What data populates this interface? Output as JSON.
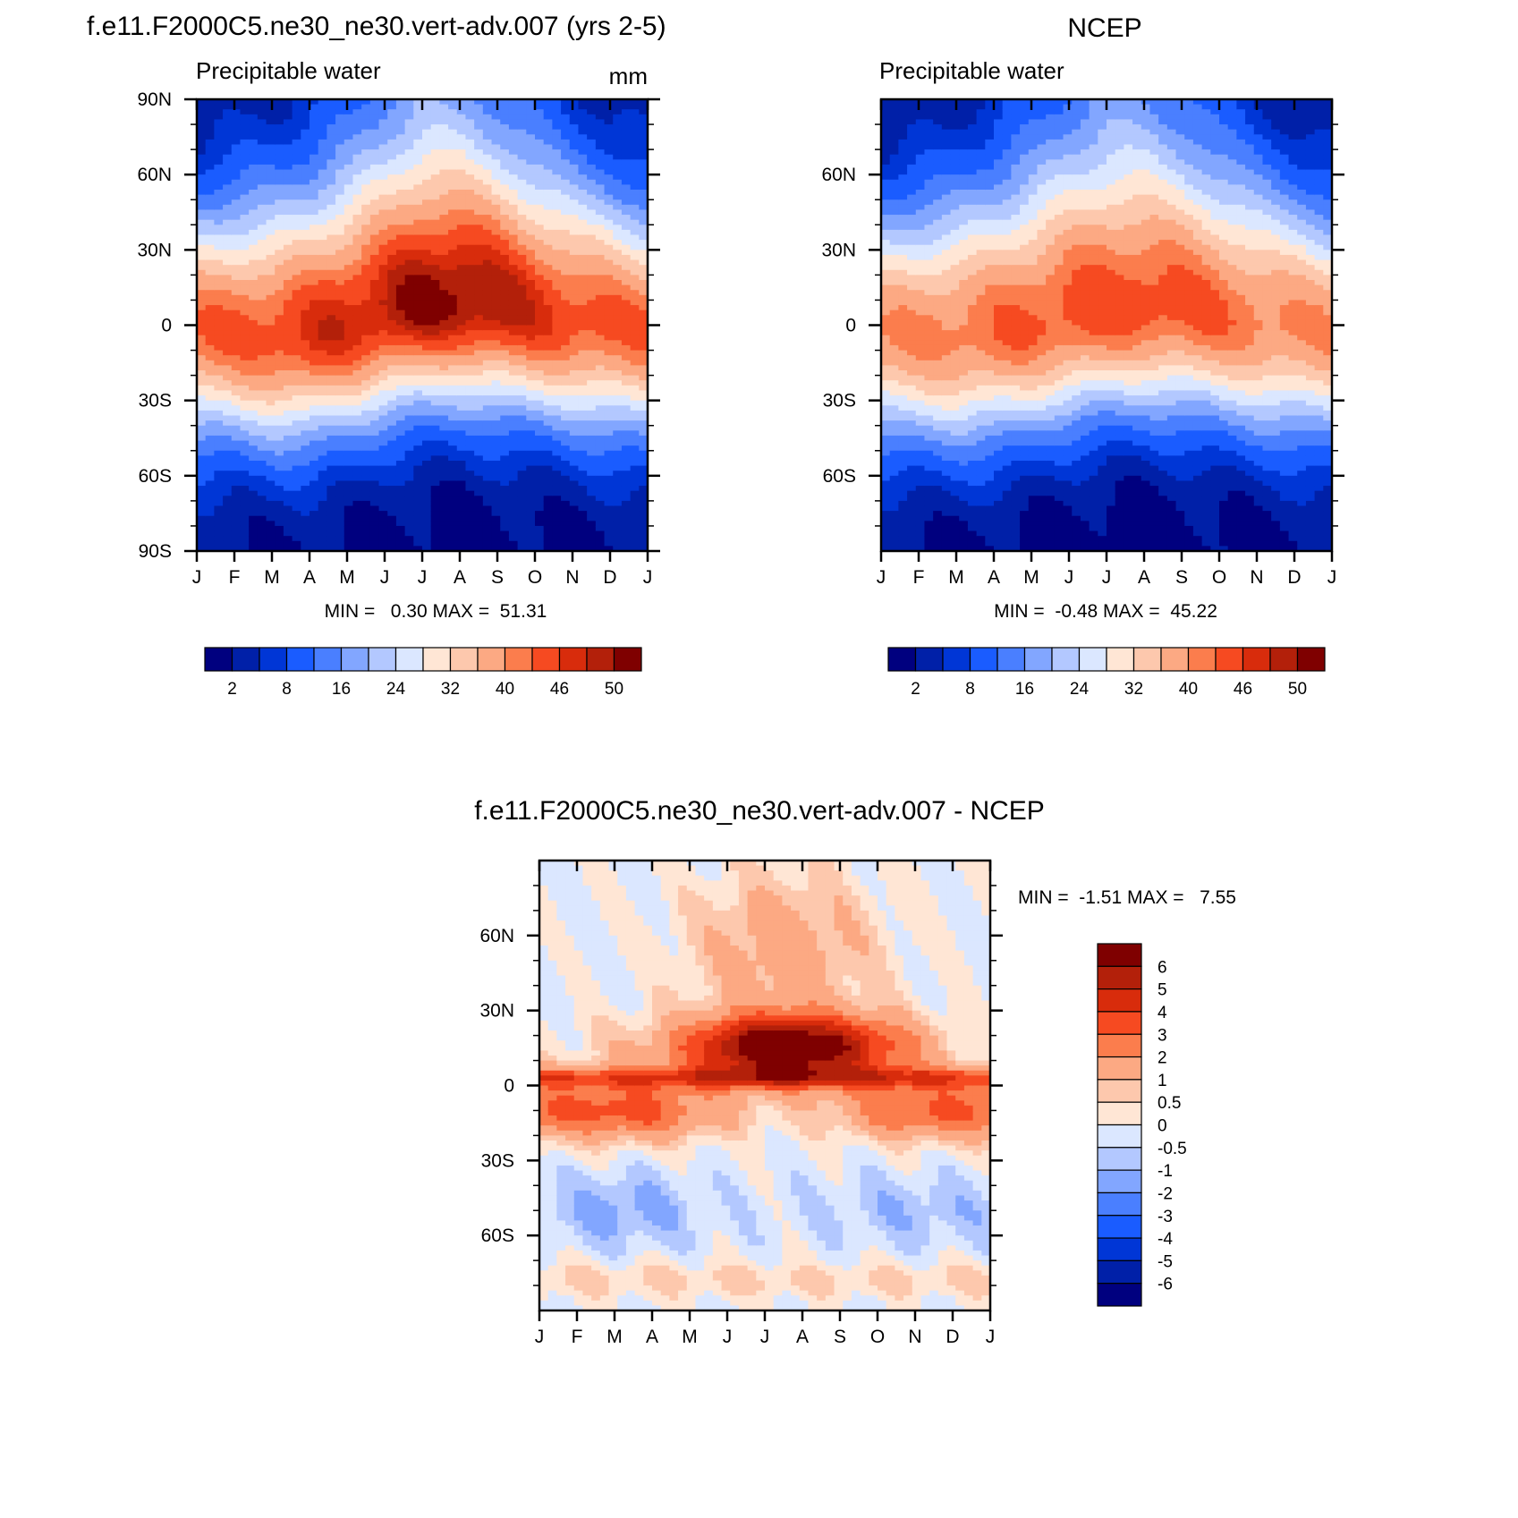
{
  "chart_data": [
    {
      "id": "model",
      "type": "heatmap",
      "title": "f.e11.F2000C5.ne30_ne30.vert-adv.007 (yrs 2-5)",
      "left_label": "Precipitable water",
      "right_label": "mm",
      "x_tick_labels": [
        "J",
        "F",
        "M",
        "A",
        "M",
        "J",
        "J",
        "A",
        "S",
        "O",
        "N",
        "D",
        "J"
      ],
      "y_tick_labels": [
        "90N",
        "60N",
        "30N",
        "0",
        "30S",
        "60S",
        "90S"
      ],
      "ylim": [
        -90,
        90
      ],
      "stats": "MIN =   0.30 MAX =  51.31",
      "colorbar_labels": [
        "2",
        "8",
        "16",
        "24",
        "32",
        "40",
        "46",
        "50"
      ],
      "field": {
        "min": 0.3,
        "max": 51.31,
        "eq_peak": [
          43,
          43.5,
          45,
          46.5,
          47.5,
          49,
          50.5,
          51.3,
          49.5,
          47,
          45,
          44,
          43
        ],
        "itcz_lat": [
          -2,
          -3,
          -5,
          -4,
          0,
          5,
          9,
          10,
          8,
          5,
          2,
          0,
          -2
        ],
        "nh_pole": [
          1.5,
          1.5,
          2,
          3,
          5,
          9,
          12,
          11,
          8,
          5,
          3,
          2,
          1.5
        ],
        "sh_pole": [
          1.5,
          1.2,
          1.0,
          0.8,
          0.6,
          0.5,
          0.4,
          0.4,
          0.5,
          0.6,
          0.8,
          1.0,
          1.5
        ]
      }
    },
    {
      "id": "ncep",
      "type": "heatmap",
      "title": "NCEP",
      "left_label": "Precipitable water",
      "x_tick_labels": [
        "J",
        "F",
        "M",
        "A",
        "M",
        "J",
        "J",
        "A",
        "S",
        "O",
        "N",
        "D",
        "J"
      ],
      "y_tick_labels": [
        "60N",
        "30N",
        "0",
        "30S",
        "60S"
      ],
      "ylim": [
        -90,
        90
      ],
      "stats": "MIN =  -0.48 MAX =  45.22",
      "colorbar_labels": [
        "2",
        "8",
        "16",
        "24",
        "32",
        "40",
        "46",
        "50"
      ],
      "field": {
        "min": -0.48,
        "max": 45.22,
        "eq_peak": [
          40,
          40.5,
          41.5,
          42.5,
          43.5,
          44.5,
          45,
          45.2,
          44.5,
          43,
          41.5,
          40.5,
          40
        ],
        "itcz_lat": [
          -3,
          -4,
          -5,
          -3,
          0,
          4,
          7,
          8,
          7,
          4,
          1,
          -1,
          -3
        ],
        "nh_pole": [
          1,
          1,
          1.5,
          2.5,
          4.5,
          8,
          11,
          10,
          7,
          4,
          2.5,
          1.5,
          1
        ],
        "sh_pole": [
          1.2,
          1.0,
          0.8,
          0.6,
          0.4,
          0.2,
          0,
          0,
          0.2,
          0.4,
          0.7,
          0.9,
          1.2
        ]
      }
    },
    {
      "id": "diff",
      "type": "heatmap",
      "title": "f.e11.F2000C5.ne30_ne30.vert-adv.007 - NCEP",
      "x_tick_labels": [
        "J",
        "F",
        "M",
        "A",
        "M",
        "J",
        "J",
        "A",
        "S",
        "O",
        "N",
        "D",
        "J"
      ],
      "y_tick_labels": [
        "60N",
        "30N",
        "0",
        "30S",
        "60S"
      ],
      "ylim": [
        -90,
        90
      ],
      "stats": "MIN =  -1.51 MAX =   7.55",
      "colorbar_labels": [
        "6",
        "5",
        "4",
        "3",
        "2",
        "1",
        "0.5",
        "0",
        "-0.5",
        "-1",
        "-2",
        "-3",
        "-4",
        "-5",
        "-6"
      ],
      "field": {
        "min": -1.51,
        "max": 7.55,
        "nh_band_peak": [
          0.2,
          0.4,
          0.8,
          1.5,
          3,
          5.5,
          7.5,
          7.5,
          6,
          4,
          2,
          0.8,
          0.2
        ],
        "sh_band_peak": [
          3.2,
          3.3,
          3.6,
          3.4,
          2.2,
          1.2,
          0.6,
          0.6,
          1.2,
          2.5,
          3.2,
          3.3,
          3.2
        ],
        "sh_mid_value": [
          -0.6,
          -0.8,
          -1.2,
          -1.0,
          -0.5,
          -0.2,
          -0.2,
          -0.3,
          -0.4,
          -0.7,
          -0.8,
          -0.7,
          -0.6
        ]
      }
    }
  ],
  "colors": {
    "abs_palette": [
      "#00007f",
      "#0020a8",
      "#0036d6",
      "#1a5cff",
      "#4a7fff",
      "#82a6ff",
      "#b3c8ff",
      "#dbe7ff",
      "#ffe6d5",
      "#fdc8ad",
      "#fca983",
      "#fb7d4d",
      "#f64a21",
      "#d82c0c",
      "#b3200a",
      "#7f0000"
    ],
    "diff_palette": [
      "#00007f",
      "#0020a8",
      "#0036d6",
      "#1a5cff",
      "#4a7fff",
      "#82a6ff",
      "#b3c8ff",
      "#dbe7ff",
      "#ffe6d5",
      "#fdc8ad",
      "#fca983",
      "#fb7d4d",
      "#f64a21",
      "#d82c0c",
      "#b3200a",
      "#7f0000"
    ]
  }
}
